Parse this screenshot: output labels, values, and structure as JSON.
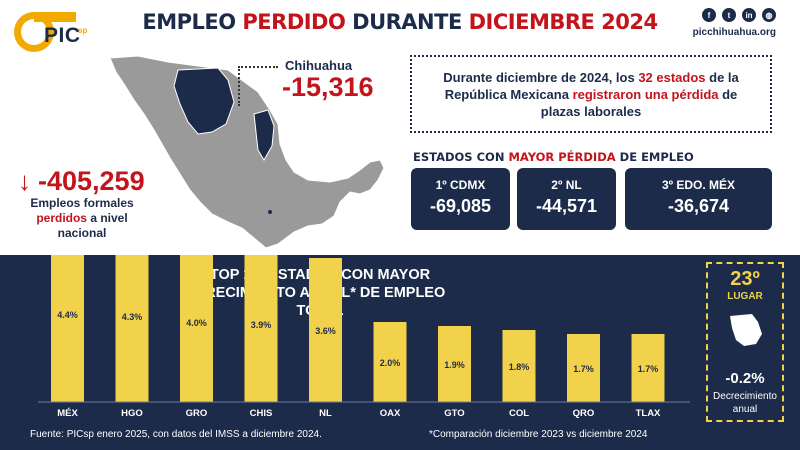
{
  "header": {
    "logo_text": "PIC",
    "logo_sup": "sp",
    "title_part1": "EMPLEO ",
    "title_part2": "PERDIDO",
    "title_part3": " DURANTE ",
    "title_part4": "DICIEMBRE 2024",
    "social_icons": [
      "facebook-icon",
      "twitter-icon",
      "linkedin-icon",
      "web-icon"
    ],
    "social_glyphs": [
      "f",
      "t",
      "in",
      "◍"
    ],
    "site": "picchihuahua.org"
  },
  "highlight": {
    "state": "Chihuahua",
    "value": "-15,316"
  },
  "national": {
    "value": "-405,259",
    "text1": "Empleos formales",
    "text2": "perdidos",
    "text3": " a nivel nacional"
  },
  "note": {
    "part1": "Durante diciembre de 2024, los ",
    "part2": "32 estados",
    "part3": " de la República Mexicana ",
    "part4": "registraron una pérdida",
    "part5": " de plazas laborales"
  },
  "loss_ranking": {
    "heading_part1": "ESTADOS CON ",
    "heading_part2": "MAYOR PÉRDIDA",
    "heading_part3": " DE EMPLEO",
    "items": [
      {
        "label": "1º CDMX",
        "value": "-69,085"
      },
      {
        "label": "2º NL",
        "value": "-44,571"
      },
      {
        "label": "3º EDO. MÉX",
        "value": "-36,674"
      }
    ]
  },
  "growth_chart": {
    "title_line1": "TOP 10: ESTADOS CON MAYOR",
    "title_line2": "CRECIMIENTO ANUAL* DE EMPLEO TOTAL",
    "bar_color": "#f2d14b",
    "footnote": "*Comparación diciembre 2023 vs diciembre 2024"
  },
  "chart_data": {
    "type": "bar",
    "categories": [
      "MÉX",
      "HGO",
      "GRO",
      "CHIS",
      "NL",
      "OAX",
      "GTO",
      "COL",
      "QRO",
      "TLAX"
    ],
    "values": [
      4.4,
      4.3,
      4.0,
      3.9,
      3.6,
      2.0,
      1.9,
      1.8,
      1.7,
      1.7
    ],
    "labels": [
      "4.4%",
      "4.3%",
      "4.0%",
      "3.9%",
      "3.6%",
      "2.0%",
      "1.9%",
      "1.8%",
      "1.7%",
      "1.7%"
    ]
  },
  "side": {
    "rank": "23º",
    "rank_label": "LUGAR",
    "value": "-0.2%",
    "text": "Decrecimiento anual"
  },
  "source": "Fuente: PICsp enero 2025, con datos del IMSS a diciembre 2024.",
  "colors": {
    "navy": "#1c2b4a",
    "red": "#c3141c",
    "gold": "#f2d14b",
    "map_gray": "#9a9a9a"
  }
}
